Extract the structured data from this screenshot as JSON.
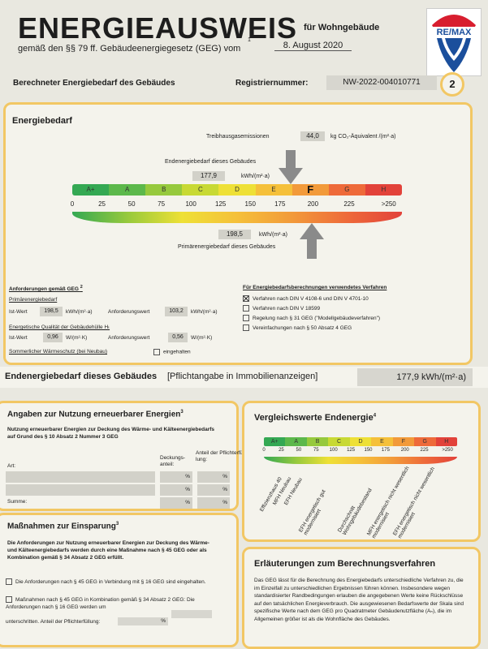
{
  "header": {
    "title": "ENERGIEAUSWEIS",
    "for_type": "für Wohngebäude",
    "legal": "gemäß den §§ 79 ff. Gebäudeenergiegesetz (GEG) vom",
    "footnote": "1",
    "date": "8. August 2020",
    "page_num": "2"
  },
  "logo": {
    "text": "RE/MAX",
    "colors": {
      "red": "#d81e2f",
      "blue": "#1b4f9c"
    }
  },
  "reg": {
    "label": "Berechneter Energiebedarf des Gebäudes",
    "reg_label": "Registriernummer:",
    "reg_value": "NW-2022-004010771"
  },
  "energy": {
    "heading": "Energiebedarf",
    "ghg_label": "Treibhausgasemissionen",
    "ghg_value": "44,0",
    "ghg_unit": "kg CO₂-Äquivalent /(m²·a)",
    "end_label": "Endenergiebedarf dieses Gebäudes",
    "end_value": "177,9",
    "end_unit": "kWh/(m²·a)",
    "primary_label": "Primärenergiebedarf dieses Gebäudes",
    "primary_value": "198,5",
    "primary_unit": "kWh/(m²·a)",
    "classes": [
      "A+",
      "A",
      "B",
      "C",
      "D",
      "E",
      "F",
      "G",
      "H"
    ],
    "active_class": "F",
    "ticks": [
      "0",
      "25",
      "50",
      "75",
      "100",
      "125",
      "150",
      "175",
      "200",
      "225",
      ">250"
    ]
  },
  "requirements": {
    "title": "Anforderungen gemäß GEG",
    "fn": "2",
    "primary_title": "Primärenergiebedarf",
    "ist_label": "Ist-Wert",
    "ist_value": "198,5",
    "ist_unit": "kWh/(m²·a)",
    "req_label": "Anforderungswert",
    "req_value": "103,2",
    "req_unit": "kWh/(m²·a)",
    "shell_title": "Energetische Qualität der Gebäudehülle Hₜ",
    "ist2_value": "0,96",
    "ist2_unit": "W/(m²·K)",
    "req2_value": "0,56",
    "req2_unit": "W/(m²·K)",
    "summer_label": "Sommerlicher Wärmeschutz (bei Neubau)",
    "summer_check": "eingehalten"
  },
  "methods": {
    "title": "Für Energiebedarfsberechnungen verwendetes Verfahren",
    "items": [
      {
        "label": "Verfahren nach DIN V 4108-6 und DIN V 4701-10",
        "checked": true
      },
      {
        "label": "Verfahren nach DIN V 18599",
        "checked": false
      },
      {
        "label": "Regelung nach § 31 GEG (\"Modellgebäudeverfahren\")",
        "checked": false
      },
      {
        "label": "Vereinfachungen nach § 50 Absatz 4 GEG",
        "checked": false
      }
    ]
  },
  "endbar": {
    "label": "Endenergiebedarf dieses Gebäudes",
    "note": "[Pflichtangabe in Immobilienanzeigen]",
    "value": "177,9 kWh/(m²·a)"
  },
  "renewables": {
    "title": "Angaben zur Nutzung erneuerbarer Energien",
    "fn": "3",
    "desc": "Nutzung erneuerbarer Energien zur Deckung des Wärme- und Kälteenergiebedarfs auf Grund des § 10 Absatz 2 Nummer 3 GEG",
    "col_art": "Art:",
    "col_anteil": "Deckungs-\nanteil:",
    "col_pflicht": "Anteil der Pflichterfül-\nlung:",
    "pct": "%",
    "sum": "Summe:"
  },
  "savings": {
    "title": "Maßnahmen zur Einsparung",
    "fn": "3",
    "desc": "Die Anforderungen zur Nutzung erneuerbarer Energien zur Deckung des Wärme- und Kälteenergiebedarfs werden durch eine Maßnahme nach § 45 GEG oder als Kombination gemäß § 34 Absatz 2 GEG erfüllt.",
    "opt1": "Die Anforderungen nach § 45 GEG in Verbindung mit § 16 GEG sind eingehalten.",
    "opt2": "Maßnahmen nach § 45 GEG in Kombination gemäß § 34 Absatz 2 GEG: Die Anforderungen nach § 16 GEG werden um",
    "opt2b": "unterschritten. Anteil der Pflichterfüllung:",
    "pct": "%"
  },
  "compare": {
    "title": "Vergleichswerte Endenergie",
    "fn": "4",
    "classes": [
      "A+",
      "A",
      "B",
      "C",
      "D",
      "E",
      "F",
      "G",
      "H"
    ],
    "ticks": [
      "0",
      "25",
      "50",
      "75",
      "100",
      "125",
      "150",
      "175",
      "200",
      "225",
      ">250"
    ],
    "labels": [
      "Effizienzhaus 40",
      "MFH Neubau",
      "EFH Neubau",
      "EFH energetisch gut modernisiert",
      "Durchschnitt Wohngebäudebestand",
      "MFH energetisch nicht wesentlich modernisiert",
      "EFH energetisch nicht wesentlich modernisiert"
    ]
  },
  "explain": {
    "title": "Erläuterungen zum Berechnungsverfahren",
    "text": "Das GEG lässt für die Berechnung des Energiebedarfs unterschiedliche Verfahren zu, die im Einzelfall zu unterschiedlichen Ergebnissen führen können. Insbesondere wegen standardisierter Randbedingungen erlauben die angegebenen Werte keine Rückschlüsse auf den tatsächlichen Energieverbrauch. Die ausgewiesenen Bedarfswerte der Skala sind spezifische Werte nach dem GEG pro Quadratmeter Gebäudenutzfläche (Aₙ), die im Allgemeinen größer ist als die Wohnfläche des Gebäudes."
  }
}
